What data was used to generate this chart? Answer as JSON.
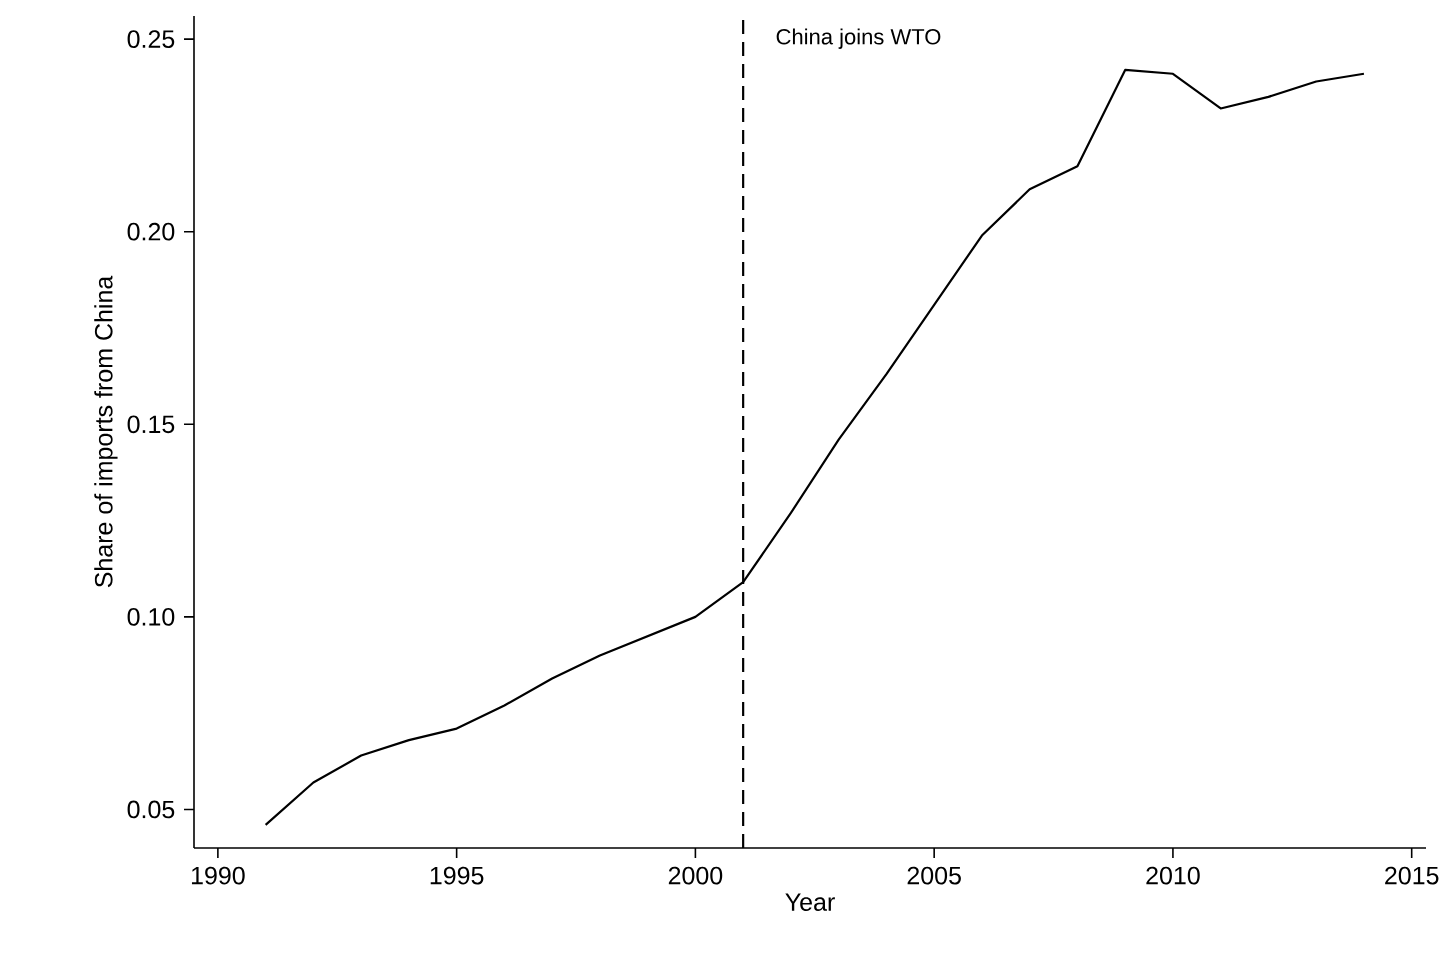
{
  "chart_data": {
    "type": "line",
    "xlabel": "Year",
    "ylabel": "Share of imports from China",
    "x": [
      1991,
      1992,
      1993,
      1994,
      1995,
      1996,
      1997,
      1998,
      1999,
      2000,
      2001,
      2002,
      2003,
      2004,
      2005,
      2006,
      2007,
      2008,
      2009,
      2010,
      2011,
      2012,
      2013,
      2014
    ],
    "values": [
      0.046,
      0.057,
      0.064,
      0.068,
      0.071,
      0.077,
      0.084,
      0.09,
      0.095,
      0.1,
      0.109,
      0.127,
      0.146,
      0.163,
      0.181,
      0.199,
      0.211,
      0.217,
      0.242,
      0.241,
      0.232,
      0.235,
      0.239,
      0.241
    ],
    "color": "#000000",
    "line_style": "solid",
    "xlim": [
      1989.5,
      2015.3
    ],
    "ylim": [
      0.04,
      0.256
    ],
    "xticks": [
      1990,
      1995,
      2000,
      2005,
      2010,
      2015
    ],
    "yticks": [
      {
        "value": 0.05,
        "label": "0.05"
      },
      {
        "value": 0.1,
        "label": "0.10"
      },
      {
        "value": 0.15,
        "label": "0.15"
      },
      {
        "value": 0.2,
        "label": "0.20"
      },
      {
        "value": 0.25,
        "label": "0.25"
      }
    ],
    "ref_lines": [
      {
        "axis": "x",
        "value": 2001,
        "label": "China joins WTO",
        "color": "#000000",
        "line_style": "dashed"
      }
    ]
  }
}
